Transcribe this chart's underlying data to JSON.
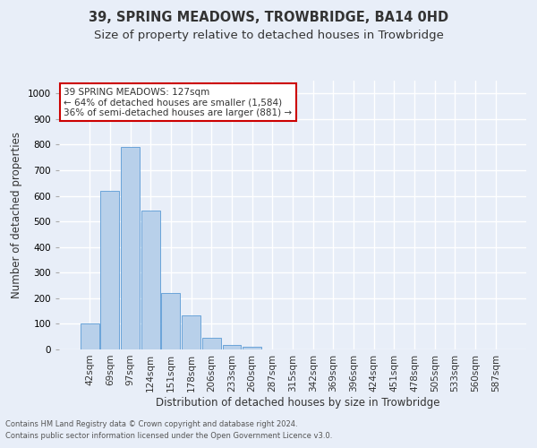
{
  "title": "39, SPRING MEADOWS, TROWBRIDGE, BA14 0HD",
  "subtitle": "Size of property relative to detached houses in Trowbridge",
  "xlabel": "Distribution of detached houses by size in Trowbridge",
  "ylabel": "Number of detached properties",
  "footnote1": "Contains HM Land Registry data © Crown copyright and database right 2024.",
  "footnote2": "Contains public sector information licensed under the Open Government Licence v3.0.",
  "bar_labels": [
    "42sqm",
    "69sqm",
    "97sqm",
    "124sqm",
    "151sqm",
    "178sqm",
    "206sqm",
    "233sqm",
    "260sqm",
    "287sqm",
    "315sqm",
    "342sqm",
    "369sqm",
    "396sqm",
    "424sqm",
    "451sqm",
    "478sqm",
    "505sqm",
    "533sqm",
    "560sqm",
    "587sqm"
  ],
  "bar_values": [
    103,
    621,
    791,
    541,
    222,
    132,
    45,
    18,
    10,
    0,
    0,
    0,
    0,
    0,
    0,
    0,
    0,
    0,
    0,
    0,
    0
  ],
  "bar_color": "#b8d0ea",
  "bar_edge_color": "#5b9bd5",
  "annotation_text": "39 SPRING MEADOWS: 127sqm\n← 64% of detached houses are smaller (1,584)\n36% of semi-detached houses are larger (881) →",
  "annotation_box_color": "#ffffff",
  "annotation_border_color": "#cc0000",
  "ylim": [
    0,
    1050
  ],
  "yticks": [
    0,
    100,
    200,
    300,
    400,
    500,
    600,
    700,
    800,
    900,
    1000
  ],
  "bg_color": "#e8eef8",
  "grid_color": "#ffffff",
  "title_fontsize": 10.5,
  "subtitle_fontsize": 9.5,
  "axis_label_fontsize": 8.5,
  "tick_fontsize": 7.5,
  "annotation_fontsize": 7.5,
  "footnote_fontsize": 6.0
}
